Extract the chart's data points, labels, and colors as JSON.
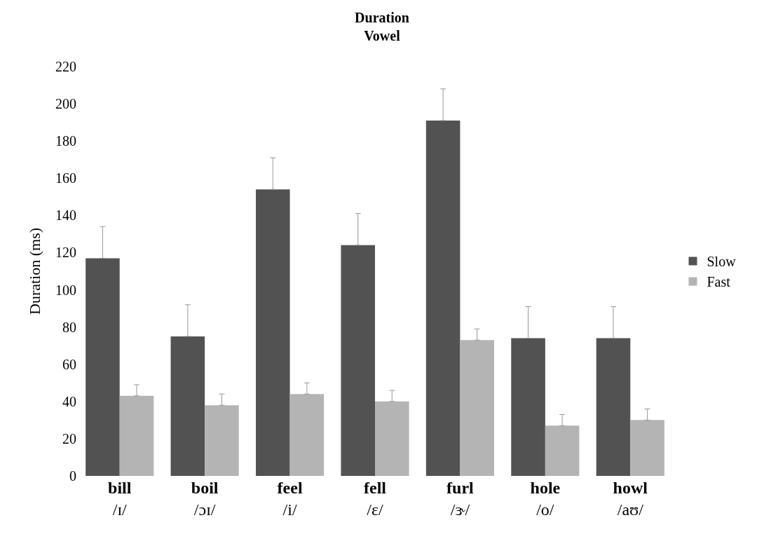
{
  "chart_data": {
    "type": "bar",
    "title": "Duration\nVowel",
    "ylabel": "Duration (ms)",
    "categories": [
      "bill\n/ɪ/",
      "boil\n/ɔɪ/",
      "feel\n/i/",
      "fell\n/ɛ/",
      "furl\n/ɝ/",
      "hole\n/o/",
      "howl\n/aʊ/"
    ],
    "series": [
      {
        "name": "Slow",
        "color": "#525252",
        "values": [
          117,
          75,
          154,
          124,
          191,
          74,
          74
        ],
        "errors": [
          [
            117,
            134
          ],
          [
            75,
            92
          ],
          [
            154,
            171
          ],
          [
            124,
            141
          ],
          [
            191,
            208
          ],
          [
            74,
            91
          ],
          [
            74,
            91
          ]
        ]
      },
      {
        "name": "Fast",
        "color": "#b4b4b4",
        "values": [
          43,
          38,
          44,
          40,
          73,
          27,
          30
        ],
        "errors": [
          [
            43,
            49
          ],
          [
            38,
            44
          ],
          [
            44,
            50
          ],
          [
            40,
            46
          ],
          [
            73,
            79
          ],
          [
            27,
            33
          ],
          [
            30,
            36
          ]
        ]
      }
    ],
    "ylim": [
      0,
      220
    ],
    "yticks": [
      0,
      20,
      40,
      60,
      80,
      100,
      120,
      140,
      160,
      180,
      200,
      220
    ],
    "legend": "right"
  }
}
